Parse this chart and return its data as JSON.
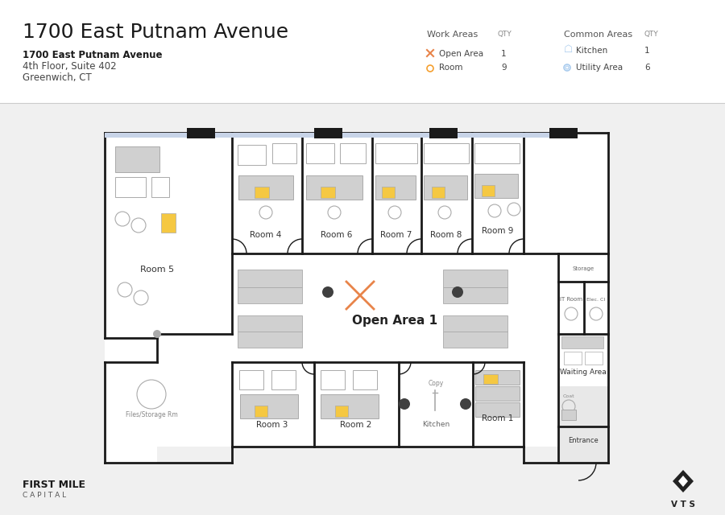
{
  "title": "1700 East Putnam Avenue",
  "subtitle_line1": "1700 East Putnam Avenue",
  "subtitle_line2": "4th Floor, Suite 402",
  "subtitle_line3": "Greenwich, CT",
  "bg_color": "#f0f0f0",
  "floor_bg": "#ffffff",
  "wall_color": "#1a1a1a",
  "room_label_color": "#333333",
  "open_area_label": "Open Area 1",
  "open_area_color": "#e8844a",
  "waiting_area_color": "#e8e8e8",
  "work_areas_header": "Work Areas",
  "qty_header": "QTY",
  "common_areas_header": "Common Areas",
  "legend_items_work": [
    {
      "label": "Open Area",
      "qty": "1"
    },
    {
      "label": "Room",
      "qty": "9"
    }
  ],
  "legend_items_common": [
    {
      "label": "Kitchen",
      "qty": "1"
    },
    {
      "label": "Utility Area",
      "qty": "6"
    }
  ],
  "furniture_color": "#d0d0d0",
  "furniture_outline": "#aaaaaa",
  "desk_yellow": "#f5c842",
  "door_color": "#555555",
  "header_bg": "#ffffff",
  "divider_color": "#cccccc"
}
